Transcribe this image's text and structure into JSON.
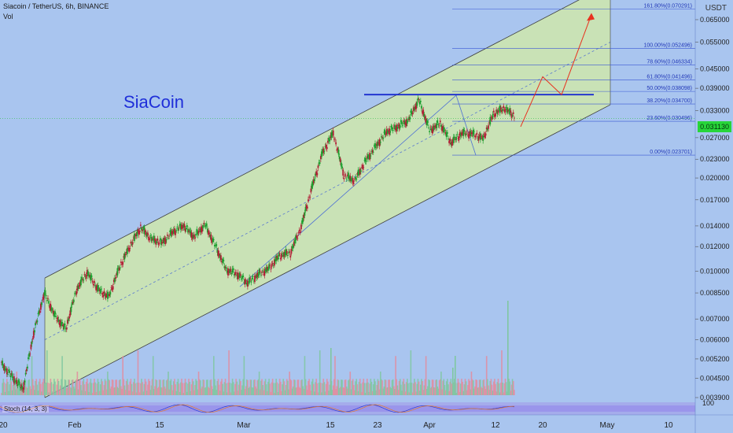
{
  "header": {
    "title": "Siacoin / TetherUS, 6h, BINANCE",
    "vol_label": "Vol",
    "currency": "USDT",
    "asset_label": "SiaCoin",
    "stoch_label": "Stoch (14, 3, 3)",
    "last_price": "0.031130",
    "stoch_axis_tick": "100"
  },
  "colors": {
    "background": "#a9c5ef",
    "channel_fill": "#cfe6ac",
    "up_candle": "#1d9f2f",
    "down_candle": "#b21f36",
    "fib_line": "#3a56d4",
    "resistance": "#1a2ccf",
    "projection": "#e8321f",
    "stoch_panel": "#9f8fe6"
  },
  "chart_data": {
    "type": "candlestick",
    "title": "Siacoin / TetherUS, 6h, BINANCE",
    "scale": "log",
    "ylim": [
      0.0039,
      0.08
    ],
    "x_labels": [
      "20",
      "Feb",
      "15",
      "Mar",
      "15",
      "23",
      "Apr",
      "12",
      "20",
      "May",
      "10"
    ],
    "y_ticks": [
      "0.003900",
      "0.004500",
      "0.005200",
      "0.006000",
      "0.007000",
      "0.008500",
      "0.010000",
      "0.012000",
      "0.014000",
      "0.017000",
      "0.020000",
      "0.023000",
      "0.027000",
      "0.033000",
      "0.039000",
      "0.045000",
      "0.055000",
      "0.065000"
    ],
    "price_path": [
      [
        0.0049,
        0.0051
      ],
      [
        0.0043,
        0.0048
      ],
      [
        0.0041,
        0.0042
      ],
      [
        0.006,
        0.0066
      ],
      [
        0.0088,
        0.0082
      ],
      [
        0.0071,
        0.0072
      ],
      [
        0.0064,
        0.0066
      ],
      [
        0.0085,
        0.0089
      ],
      [
        0.0096,
        0.0102
      ],
      [
        0.0089,
        0.0086
      ],
      [
        0.0081,
        0.0084
      ],
      [
        0.0102,
        0.0103
      ],
      [
        0.0118,
        0.0123
      ],
      [
        0.0136,
        0.0141
      ],
      [
        0.0129,
        0.0125
      ],
      [
        0.0121,
        0.0126
      ],
      [
        0.0132,
        0.0136
      ],
      [
        0.0142,
        0.0139
      ],
      [
        0.0131,
        0.0127
      ],
      [
        0.0139,
        0.0144
      ],
      [
        0.0123,
        0.0118
      ],
      [
        0.0098,
        0.0104
      ],
      [
        0.0101,
        0.0095
      ],
      [
        0.0093,
        0.009
      ],
      [
        0.0096,
        0.0099
      ],
      [
        0.0103,
        0.0101
      ],
      [
        0.011,
        0.0115
      ],
      [
        0.0113,
        0.0116
      ],
      [
        0.0136,
        0.0142
      ],
      [
        0.0178,
        0.0194
      ],
      [
        0.0228,
        0.0255
      ],
      [
        0.0283,
        0.0277
      ],
      [
        0.0212,
        0.0196
      ],
      [
        0.0187,
        0.0205
      ],
      [
        0.0221,
        0.0232
      ],
      [
        0.0245,
        0.0262
      ],
      [
        0.0276,
        0.0289
      ],
      [
        0.0304,
        0.0282
      ],
      [
        0.0291,
        0.0323
      ],
      [
        0.0365,
        0.0352
      ],
      [
        0.0293,
        0.0278
      ],
      [
        0.0306,
        0.0295
      ],
      [
        0.0254,
        0.0266
      ],
      [
        0.0282,
        0.0276
      ],
      [
        0.0272,
        0.0285
      ],
      [
        0.0271,
        0.0266
      ],
      [
        0.0311,
        0.0336
      ],
      [
        0.0349,
        0.0324
      ],
      [
        0.0322,
        0.0311
      ]
    ],
    "fib_levels": [
      {
        "label": "161.80%(0.070291)",
        "value": 0.070291
      },
      {
        "label": "100.00%(0.052496)",
        "value": 0.052496
      },
      {
        "label": "78.60%(0.046334)",
        "value": 0.046334
      },
      {
        "label": "61.80%(0.041496)",
        "value": 0.041496
      },
      {
        "label": "50.00%(0.038098)",
        "value": 0.038098
      },
      {
        "label": "38.20%(0.034700)",
        "value": 0.0347
      },
      {
        "label": "23.60%(0.030496)",
        "value": 0.030496
      },
      {
        "label": "0.00%(0.023701)",
        "value": 0.023701
      }
    ],
    "resistance": 0.0372,
    "last_price": 0.03113,
    "projection": [
      0.0293,
      0.0425,
      0.0372,
      0.0675
    ]
  }
}
